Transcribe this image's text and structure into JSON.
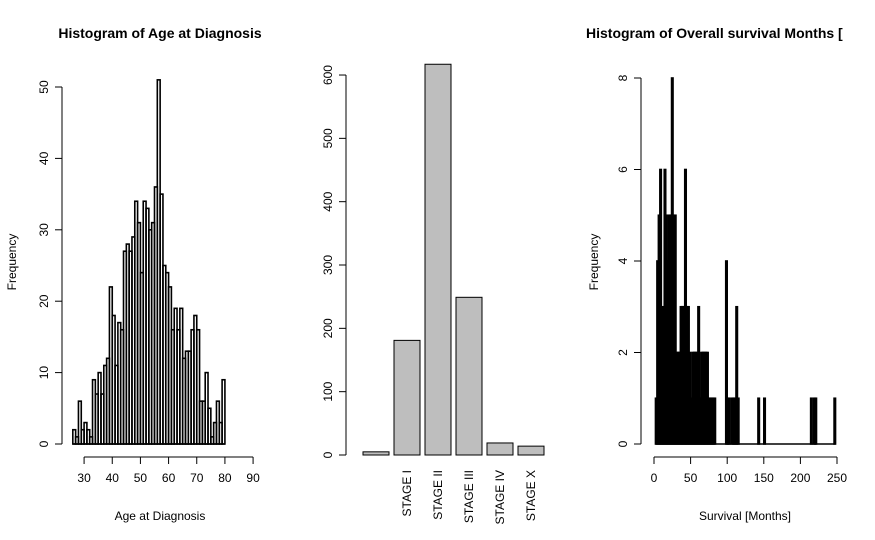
{
  "chart_data": [
    {
      "type": "bar",
      "subtype": "histogram",
      "title": "Histogram of Age at Diagnosis",
      "xlabel": "Age at Diagnosis",
      "ylabel": "Frequency",
      "xlim": [
        25,
        90
      ],
      "ylim": [
        0,
        50
      ],
      "xticks": [
        30,
        40,
        50,
        60,
        70,
        80,
        90
      ],
      "yticks": [
        0,
        10,
        20,
        30,
        40,
        50
      ],
      "bin_width": 1,
      "bin_start": 26,
      "counts": [
        2,
        1,
        6,
        2,
        3,
        2,
        1,
        9,
        7,
        10,
        7,
        11,
        12,
        22,
        18,
        11,
        17,
        16,
        27,
        28,
        27,
        29,
        34,
        31,
        24,
        34,
        33,
        30,
        31,
        36,
        51,
        35,
        25,
        24,
        22,
        16,
        19,
        16,
        19,
        12,
        13,
        13,
        16,
        18,
        16,
        6,
        6,
        10,
        5,
        1,
        3,
        6,
        3,
        9
      ]
    },
    {
      "type": "bar",
      "title": "",
      "xlabel": "",
      "ylabel": "",
      "ylim": [
        0,
        600
      ],
      "yticks": [
        0,
        100,
        200,
        300,
        400,
        500,
        600
      ],
      "categories": [
        "",
        "STAGE I",
        "STAGE II",
        "STAGE III",
        "STAGE IV",
        "STAGE X"
      ],
      "values": [
        5,
        181,
        617,
        249,
        19,
        14
      ]
    },
    {
      "type": "bar",
      "subtype": "histogram",
      "title": "Histogram of Overall survival Months [",
      "xlabel": "Survival [Months]",
      "ylabel": "Frequency",
      "xlim": [
        0,
        250
      ],
      "ylim": [
        0,
        8
      ],
      "xticks": [
        0,
        50,
        100,
        150,
        200,
        250
      ],
      "yticks": [
        0,
        2,
        4,
        6,
        8
      ],
      "bin_width": 2,
      "bin_start": 2,
      "counts": [
        1,
        4,
        5,
        6,
        3,
        2,
        6,
        5,
        4,
        5,
        5,
        8,
        5,
        5,
        2,
        2,
        2,
        3,
        3,
        3,
        6,
        3,
        3,
        2,
        1,
        2,
        2,
        2,
        2,
        3,
        1,
        2,
        2,
        2,
        2,
        2,
        1,
        1,
        1,
        1,
        1,
        0,
        0,
        0,
        0,
        0,
        0,
        0,
        4,
        1,
        1,
        0,
        1,
        1,
        1,
        3,
        1,
        0,
        0,
        0,
        0,
        0,
        0,
        0,
        0,
        0,
        0,
        0,
        0,
        0,
        1,
        0,
        0,
        0,
        1,
        0,
        0,
        0,
        0,
        0,
        0,
        0,
        0,
        0,
        0,
        0,
        0,
        0,
        0,
        0,
        0,
        0,
        0,
        0,
        0,
        0,
        0,
        0,
        0,
        0,
        0,
        0,
        0,
        0,
        0,
        0,
        1,
        0,
        1,
        1,
        0,
        0,
        0,
        0,
        0,
        0,
        0,
        0,
        0,
        0,
        0,
        0,
        1
      ]
    }
  ]
}
